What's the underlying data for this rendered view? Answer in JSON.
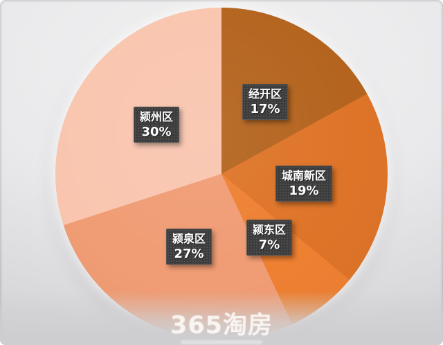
{
  "chart_data": {
    "type": "pie",
    "title": "",
    "start_angle_deg": 0,
    "direction": "clockwise",
    "legend": "none",
    "labels_on_chart": true,
    "slices": [
      {
        "name": "经开区",
        "value": 17,
        "pct_label": "17%",
        "color": "#B4641E"
      },
      {
        "name": "城南新区",
        "value": 19,
        "pct_label": "19%",
        "color": "#DE7428"
      },
      {
        "name": "颍东区",
        "value": 7,
        "pct_label": "7%",
        "color": "#EE8032"
      },
      {
        "name": "颍泉区",
        "value": 27,
        "pct_label": "27%",
        "color": "#F09C74"
      },
      {
        "name": "颍州区",
        "value": 30,
        "pct_label": "30%",
        "color": "#F9C5AF"
      }
    ]
  },
  "watermark": {
    "text": "365淘房"
  },
  "colors": {
    "background_top": "#F1F1F2",
    "background_bottom": "#CDCDD0",
    "label_box": "#3C3C3C",
    "label_text": "#FFFFFF"
  }
}
